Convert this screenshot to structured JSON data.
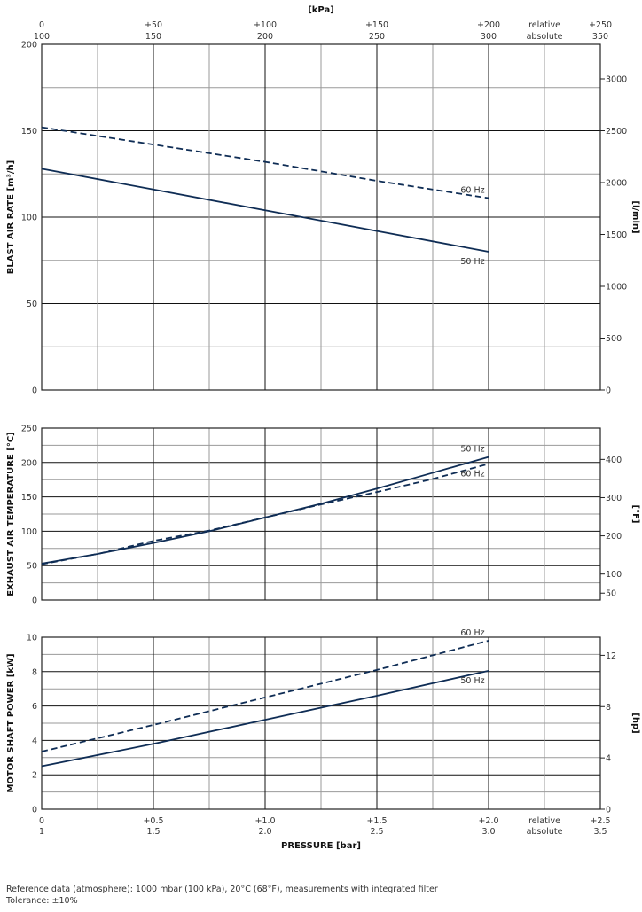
{
  "top_axis": {
    "title": "[kPa]",
    "relative": [
      "0",
      "+50",
      "+100",
      "+150",
      "+200",
      "+250"
    ],
    "absolute": [
      "100",
      "150",
      "200",
      "250",
      "300",
      "350"
    ],
    "relative_label": "relative",
    "absolute_label": "absolute"
  },
  "bottom_axis": {
    "title": "PRESSURE  [bar]",
    "relative": [
      "0",
      "+0.5",
      "+1.0",
      "+1.5",
      "+2.0",
      "+2.5"
    ],
    "absolute": [
      "1",
      "1.5",
      "2.0",
      "2.5",
      "3.0",
      "3.5"
    ],
    "relative_label": "relative",
    "absolute_label": "absolute"
  },
  "chart_data": [
    {
      "type": "line",
      "title": "",
      "ylabel": "BLAST AIR RATE  [m³/h]",
      "y2label": "[l/min]",
      "xlabel": "PRESSURE [bar] (relative)",
      "xlim": [
        0,
        2.5
      ],
      "ylim": [
        0,
        200
      ],
      "yticks": [
        0,
        50,
        100,
        150,
        200
      ],
      "y2ticks": [
        0,
        500,
        1000,
        1500,
        2000,
        2500,
        3000
      ],
      "y2_factor": 16.667,
      "x": [
        0,
        0.5,
        1.0,
        1.5,
        2.0
      ],
      "series": [
        {
          "name": "60 Hz",
          "style": "dashed",
          "values": [
            152,
            142,
            132,
            121,
            111
          ]
        },
        {
          "name": "50 Hz",
          "style": "solid",
          "values": [
            128,
            116,
            104,
            92,
            80
          ]
        }
      ],
      "grid": true
    },
    {
      "type": "line",
      "ylabel": "EXHAUST AIR TEMPERATURE  [°C]",
      "y2label": "[°F]",
      "xlim": [
        0,
        2.5
      ],
      "ylim": [
        0,
        250
      ],
      "yticks": [
        0,
        50,
        100,
        150,
        200,
        250
      ],
      "y2ticks": [
        50,
        100,
        200,
        300,
        400
      ],
      "y2_unit": "fahrenheit",
      "x": [
        0,
        0.25,
        0.5,
        0.75,
        1.0,
        1.25,
        1.5,
        1.75,
        2.0
      ],
      "series": [
        {
          "name": "50 Hz",
          "style": "solid",
          "values": [
            53,
            67,
            83,
            100,
            120,
            140,
            162,
            185,
            208
          ]
        },
        {
          "name": "60 Hz",
          "style": "dashed",
          "values": [
            52,
            67,
            86,
            101,
            120,
            139,
            157,
            176,
            198
          ]
        }
      ],
      "grid": true
    },
    {
      "type": "line",
      "ylabel": "MOTOR SHAFT POWER  [kW]",
      "y2label": "[hp]",
      "xlim": [
        0,
        2.5
      ],
      "ylim": [
        0,
        10
      ],
      "yticks": [
        0,
        2,
        4,
        6,
        8,
        10
      ],
      "y2ticks": [
        0,
        4,
        8,
        12
      ],
      "y2_factor": 1.341,
      "x": [
        0,
        0.5,
        1.0,
        1.5,
        2.0
      ],
      "series": [
        {
          "name": "60 Hz",
          "style": "dashed",
          "values": [
            3.35,
            4.9,
            6.5,
            8.1,
            9.8
          ]
        },
        {
          "name": "50 Hz",
          "style": "solid",
          "values": [
            2.5,
            3.8,
            5.2,
            6.6,
            8.05
          ]
        }
      ],
      "grid": true
    }
  ],
  "notes": {
    "reference": "Reference data (atmosphere): 1000 mbar (100 kPa), 20°C (68°F), measurements with integrated filter",
    "tolerance": "Tolerance: ±10%"
  },
  "colors": {
    "line": "#0f2d55",
    "major_grid": "#111111",
    "minor_grid": "#9a9a9a"
  }
}
